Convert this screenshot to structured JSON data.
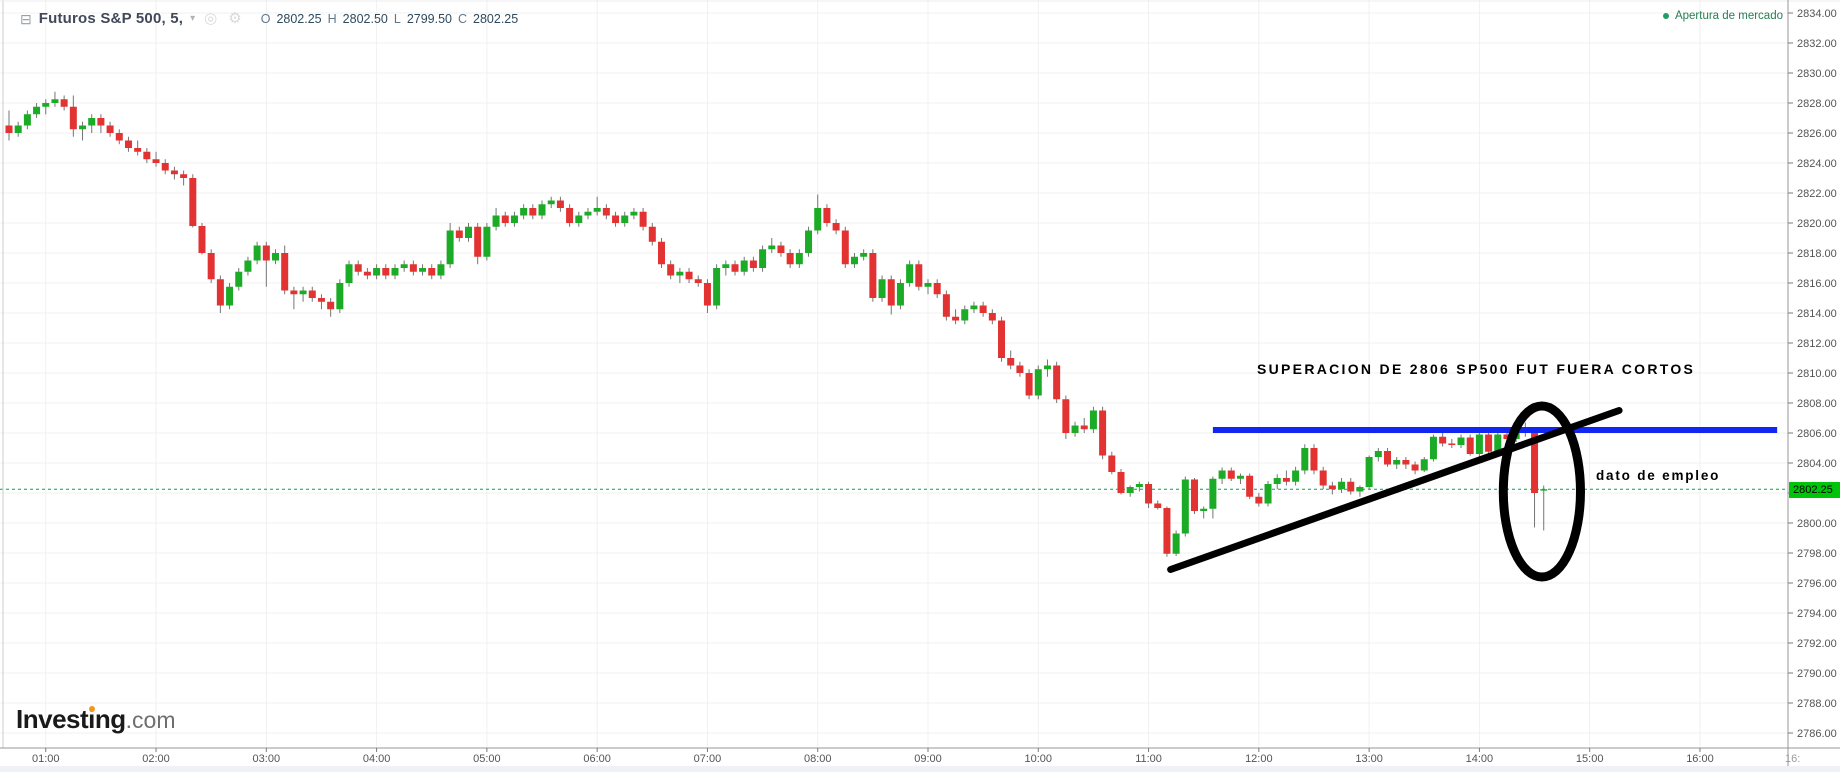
{
  "header": {
    "symbol_title": "Futuros S&P 500, 5,",
    "icons": {
      "collapse": "⊟",
      "dropdown": "▾",
      "visibility": "◎",
      "settings": "⚙"
    },
    "ohlc": {
      "o_label": "O",
      "o": "2802.25",
      "h_label": "H",
      "h": "2802.50",
      "l_label": "L",
      "l": "2799.50",
      "c_label": "C",
      "c": "2802.25"
    }
  },
  "market_open": {
    "label": "Apertura de mercado",
    "color": "#267d52"
  },
  "logo": {
    "text_before": "Invest",
    "accent_letter": "i",
    "text_after": "ng",
    "suffix": ".com"
  },
  "chart_data": {
    "type": "candlestick",
    "title": "Futuros S&P 500, 5",
    "interval_minutes": 5,
    "start_time": "00:40",
    "current_price": 2802.25,
    "current_price_label": "2802.25",
    "legend_ohlc": {
      "open": 2802.25,
      "high": 2802.5,
      "low": 2799.5,
      "close": 2802.25
    },
    "ylim": [
      2786,
      2834
    ],
    "y_ticks": [
      "2834.00",
      "2832.00",
      "2830.00",
      "2828.00",
      "2826.00",
      "2824.00",
      "2822.00",
      "2820.00",
      "2818.00",
      "2816.00",
      "2814.00",
      "2812.00",
      "2810.00",
      "2808.00",
      "2806.00",
      "2804.00",
      "2802.00",
      "2800.00",
      "2798.00",
      "2796.00",
      "2794.00",
      "2792.00",
      "2790.00",
      "2788.00",
      "2786.00"
    ],
    "x_ticks": [
      "01:00",
      "02:00",
      "03:00",
      "04:00",
      "05:00",
      "06:00",
      "07:00",
      "08:00",
      "09:00",
      "10:00",
      "11:00",
      "12:00",
      "13:00",
      "14:00",
      "15:00",
      "16:00"
    ],
    "x_tick_partial": "16:",
    "grid": true,
    "colors": {
      "up": "#1cab26",
      "down": "#e23232",
      "wick": "#757575",
      "grid": "#f0f0f0",
      "axis_line": "#979797",
      "axis_text": "#545454",
      "current_price_line": "#00a551",
      "current_price_bg": "#00c40a",
      "annotation_blue": "#1226f2",
      "annotation_black": "#000000"
    },
    "candles": [
      [
        2826.5,
        2827.5,
        2825.5,
        2826.0
      ],
      [
        2826.0,
        2826.75,
        2825.75,
        2826.5
      ],
      [
        2826.5,
        2827.5,
        2826.25,
        2827.25
      ],
      [
        2827.25,
        2828.0,
        2827.0,
        2827.75
      ],
      [
        2827.75,
        2828.25,
        2827.25,
        2828.0
      ],
      [
        2828.0,
        2828.75,
        2827.75,
        2828.25
      ],
      [
        2828.25,
        2828.5,
        2827.5,
        2827.75
      ],
      [
        2827.75,
        2828.5,
        2825.75,
        2826.25
      ],
      [
        2826.25,
        2826.75,
        2825.5,
        2826.5
      ],
      [
        2826.5,
        2827.25,
        2826.0,
        2827.0
      ],
      [
        2827.0,
        2827.25,
        2826.0,
        2826.5
      ],
      [
        2826.5,
        2826.75,
        2825.75,
        2826.0
      ],
      [
        2826.0,
        2826.25,
        2825.25,
        2825.5
      ],
      [
        2825.5,
        2825.75,
        2824.75,
        2825.0
      ],
      [
        2825.0,
        2825.5,
        2824.5,
        2824.75
      ],
      [
        2824.75,
        2825.0,
        2824.0,
        2824.25
      ],
      [
        2824.25,
        2824.75,
        2823.75,
        2824.0
      ],
      [
        2824.0,
        2824.25,
        2823.25,
        2823.5
      ],
      [
        2823.5,
        2823.75,
        2822.9,
        2823.25
      ],
      [
        2823.25,
        2823.5,
        2822.5,
        2823.0
      ],
      [
        2823.0,
        2823.25,
        2819.7,
        2819.8
      ],
      [
        2819.8,
        2820.0,
        2817.9,
        2818.0
      ],
      [
        2818.0,
        2818.25,
        2816.0,
        2816.25
      ],
      [
        2816.25,
        2816.5,
        2814.0,
        2814.5
      ],
      [
        2814.5,
        2816.0,
        2814.25,
        2815.75
      ],
      [
        2815.75,
        2817.0,
        2815.5,
        2816.75
      ],
      [
        2816.75,
        2817.75,
        2816.5,
        2817.5
      ],
      [
        2817.5,
        2818.75,
        2817.25,
        2818.5
      ],
      [
        2818.5,
        2818.75,
        2815.75,
        2817.5
      ],
      [
        2817.5,
        2818.25,
        2817.25,
        2818.0
      ],
      [
        2818.0,
        2818.5,
        2815.25,
        2815.5
      ],
      [
        2815.5,
        2815.75,
        2814.25,
        2815.25
      ],
      [
        2815.25,
        2815.75,
        2814.75,
        2815.5
      ],
      [
        2815.5,
        2815.75,
        2814.75,
        2815.0
      ],
      [
        2815.0,
        2815.25,
        2814.25,
        2814.75
      ],
      [
        2814.75,
        2815.0,
        2813.75,
        2814.25
      ],
      [
        2814.25,
        2816.25,
        2814.0,
        2816.0
      ],
      [
        2816.0,
        2817.5,
        2815.75,
        2817.25
      ],
      [
        2817.25,
        2817.5,
        2816.5,
        2816.75
      ],
      [
        2816.75,
        2817.0,
        2816.25,
        2816.5
      ],
      [
        2816.5,
        2817.25,
        2816.25,
        2817.0
      ],
      [
        2817.0,
        2817.25,
        2816.25,
        2816.5
      ],
      [
        2816.5,
        2817.25,
        2816.25,
        2817.0
      ],
      [
        2817.0,
        2817.5,
        2816.75,
        2817.25
      ],
      [
        2817.25,
        2817.5,
        2816.5,
        2816.75
      ],
      [
        2816.75,
        2817.25,
        2816.5,
        2817.0
      ],
      [
        2817.0,
        2817.25,
        2816.25,
        2816.5
      ],
      [
        2816.5,
        2817.5,
        2816.25,
        2817.25
      ],
      [
        2817.25,
        2820.0,
        2817.0,
        2819.5
      ],
      [
        2819.5,
        2819.75,
        2818.75,
        2819.0
      ],
      [
        2819.0,
        2820.0,
        2818.75,
        2819.75
      ],
      [
        2819.75,
        2820.0,
        2817.25,
        2817.75
      ],
      [
        2817.75,
        2820.0,
        2817.5,
        2819.75
      ],
      [
        2819.75,
        2821.0,
        2819.5,
        2820.5
      ],
      [
        2820.5,
        2820.75,
        2819.75,
        2820.0
      ],
      [
        2820.0,
        2820.75,
        2819.75,
        2820.5
      ],
      [
        2820.5,
        2821.25,
        2820.25,
        2821.0
      ],
      [
        2821.0,
        2821.25,
        2820.25,
        2820.5
      ],
      [
        2820.5,
        2821.5,
        2820.25,
        2821.25
      ],
      [
        2821.25,
        2821.75,
        2821.0,
        2821.5
      ],
      [
        2821.5,
        2821.75,
        2820.75,
        2821.0
      ],
      [
        2821.0,
        2821.25,
        2819.75,
        2820.0
      ],
      [
        2820.0,
        2820.75,
        2819.75,
        2820.5
      ],
      [
        2820.5,
        2821.0,
        2820.25,
        2820.75
      ],
      [
        2820.75,
        2821.75,
        2820.5,
        2821.0
      ],
      [
        2821.0,
        2821.25,
        2820.25,
        2820.5
      ],
      [
        2820.5,
        2820.75,
        2819.75,
        2820.0
      ],
      [
        2820.0,
        2820.75,
        2819.75,
        2820.5
      ],
      [
        2820.5,
        2821.0,
        2820.25,
        2820.75
      ],
      [
        2820.75,
        2821.0,
        2819.5,
        2819.75
      ],
      [
        2819.75,
        2820.0,
        2818.5,
        2818.75
      ],
      [
        2818.75,
        2819.0,
        2817.0,
        2817.25
      ],
      [
        2817.25,
        2817.5,
        2816.25,
        2816.5
      ],
      [
        2816.5,
        2817.0,
        2816.0,
        2816.75
      ],
      [
        2816.75,
        2817.0,
        2816.0,
        2816.25
      ],
      [
        2816.25,
        2816.5,
        2815.75,
        2816.0
      ],
      [
        2816.0,
        2816.25,
        2814.0,
        2814.5
      ],
      [
        2814.5,
        2817.25,
        2814.25,
        2817.0
      ],
      [
        2817.0,
        2817.5,
        2816.5,
        2817.25
      ],
      [
        2817.25,
        2817.5,
        2816.5,
        2816.75
      ],
      [
        2816.75,
        2817.75,
        2816.5,
        2817.5
      ],
      [
        2817.5,
        2817.75,
        2816.75,
        2817.0
      ],
      [
        2817.0,
        2818.5,
        2816.75,
        2818.25
      ],
      [
        2818.25,
        2819.0,
        2818.0,
        2818.5
      ],
      [
        2818.5,
        2818.75,
        2817.75,
        2818.0
      ],
      [
        2818.0,
        2818.25,
        2817.0,
        2817.25
      ],
      [
        2817.25,
        2818.25,
        2817.0,
        2818.0
      ],
      [
        2818.0,
        2819.75,
        2817.75,
        2819.5
      ],
      [
        2819.5,
        2821.9,
        2819.25,
        2821.0
      ],
      [
        2821.0,
        2821.25,
        2819.75,
        2820.0
      ],
      [
        2820.0,
        2820.25,
        2819.25,
        2819.5
      ],
      [
        2819.5,
        2819.75,
        2817.0,
        2817.25
      ],
      [
        2817.25,
        2818.0,
        2817.0,
        2817.75
      ],
      [
        2817.75,
        2818.25,
        2817.5,
        2818.0
      ],
      [
        2818.0,
        2818.25,
        2814.75,
        2815.0
      ],
      [
        2815.0,
        2816.5,
        2814.75,
        2816.25
      ],
      [
        2816.25,
        2816.5,
        2813.9,
        2814.5
      ],
      [
        2814.5,
        2816.25,
        2814.25,
        2816.0
      ],
      [
        2816.0,
        2817.5,
        2815.75,
        2817.25
      ],
      [
        2817.25,
        2817.5,
        2815.5,
        2815.75
      ],
      [
        2815.75,
        2816.25,
        2815.25,
        2816.0
      ],
      [
        2816.0,
        2816.25,
        2815.0,
        2815.25
      ],
      [
        2815.25,
        2815.5,
        2813.5,
        2813.75
      ],
      [
        2813.75,
        2814.25,
        2813.25,
        2813.5
      ],
      [
        2813.5,
        2814.5,
        2813.25,
        2814.25
      ],
      [
        2814.25,
        2814.75,
        2814.0,
        2814.5
      ],
      [
        2814.5,
        2814.75,
        2813.75,
        2814.0
      ],
      [
        2814.0,
        2814.25,
        2813.25,
        2813.5
      ],
      [
        2813.5,
        2813.75,
        2810.75,
        2811.0
      ],
      [
        2811.0,
        2811.5,
        2810.25,
        2810.5
      ],
      [
        2810.5,
        2810.75,
        2809.75,
        2810.0
      ],
      [
        2810.0,
        2810.25,
        2808.25,
        2808.5
      ],
      [
        2808.5,
        2810.5,
        2808.25,
        2810.25
      ],
      [
        2810.25,
        2810.9,
        2809.75,
        2810.5
      ],
      [
        2810.5,
        2810.75,
        2808.0,
        2808.25
      ],
      [
        2808.25,
        2808.5,
        2805.6,
        2806.0
      ],
      [
        2806.0,
        2806.75,
        2805.75,
        2806.5
      ],
      [
        2806.5,
        2807.0,
        2806.0,
        2806.25
      ],
      [
        2806.25,
        2807.75,
        2806.0,
        2807.5
      ],
      [
        2807.5,
        2807.75,
        2804.25,
        2804.5
      ],
      [
        2804.5,
        2804.75,
        2803.25,
        2803.4
      ],
      [
        2803.4,
        2803.6,
        2801.9,
        2802.0
      ],
      [
        2802.0,
        2802.5,
        2801.75,
        2802.4
      ],
      [
        2802.4,
        2802.75,
        2802.1,
        2802.6
      ],
      [
        2802.6,
        2802.75,
        2801.0,
        2801.3
      ],
      [
        2801.3,
        2801.5,
        2800.9,
        2801.0
      ],
      [
        2801.0,
        2801.1,
        2797.75,
        2797.95
      ],
      [
        2797.95,
        2799.5,
        2797.8,
        2799.3
      ],
      [
        2799.3,
        2803.1,
        2799.1,
        2802.9
      ],
      [
        2802.9,
        2803.0,
        2800.6,
        2800.8
      ],
      [
        2800.8,
        2801.1,
        2800.3,
        2800.95
      ],
      [
        2800.95,
        2803.1,
        2800.3,
        2802.95
      ],
      [
        2802.95,
        2803.7,
        2802.6,
        2803.5
      ],
      [
        2803.5,
        2803.7,
        2802.8,
        2802.95
      ],
      [
        2802.95,
        2803.3,
        2802.6,
        2803.15
      ],
      [
        2803.15,
        2803.3,
        2801.6,
        2801.75
      ],
      [
        2801.75,
        2802.0,
        2801.1,
        2801.3
      ],
      [
        2801.3,
        2802.8,
        2801.1,
        2802.6
      ],
      [
        2802.6,
        2803.25,
        2802.25,
        2803.0
      ],
      [
        2803.0,
        2803.5,
        2802.5,
        2802.75
      ],
      [
        2802.75,
        2803.75,
        2802.5,
        2803.5
      ],
      [
        2803.5,
        2805.25,
        2803.25,
        2805.0
      ],
      [
        2805.0,
        2805.25,
        2803.25,
        2803.5
      ],
      [
        2803.5,
        2803.75,
        2802.25,
        2802.5
      ],
      [
        2802.5,
        2802.75,
        2801.9,
        2802.25
      ],
      [
        2802.25,
        2803.0,
        2802.0,
        2802.75
      ],
      [
        2802.75,
        2803.0,
        2801.9,
        2802.1
      ],
      [
        2802.1,
        2802.5,
        2801.75,
        2802.4
      ],
      [
        2802.4,
        2804.5,
        2802.25,
        2804.4
      ],
      [
        2804.4,
        2805.0,
        2804.1,
        2804.8
      ],
      [
        2804.8,
        2805.0,
        2803.75,
        2803.9
      ],
      [
        2803.9,
        2804.4,
        2803.6,
        2804.2
      ],
      [
        2804.2,
        2804.4,
        2803.6,
        2803.9
      ],
      [
        2803.9,
        2804.1,
        2803.25,
        2803.5
      ],
      [
        2803.5,
        2804.4,
        2803.4,
        2804.25
      ],
      [
        2804.25,
        2805.9,
        2804.1,
        2805.75
      ],
      [
        2805.75,
        2806.0,
        2805.1,
        2805.3
      ],
      [
        2805.3,
        2805.6,
        2805.0,
        2805.2
      ],
      [
        2805.2,
        2805.9,
        2805.0,
        2805.7
      ],
      [
        2805.7,
        2805.9,
        2804.5,
        2804.6
      ],
      [
        2804.6,
        2806.0,
        2804.4,
        2805.9
      ],
      [
        2805.9,
        2806.1,
        2804.6,
        2804.75
      ],
      [
        2804.75,
        2806.0,
        2804.6,
        2805.9
      ],
      [
        2805.9,
        2806.4,
        2805.4,
        2805.6
      ],
      [
        2805.6,
        2806.6,
        2805.4,
        2806.25
      ],
      [
        2806.25,
        2806.7,
        2805.75,
        2806.0
      ],
      [
        2806.0,
        2806.3,
        2799.7,
        2802.0
      ],
      [
        2802.25,
        2802.5,
        2799.5,
        2802.25
      ]
    ],
    "annotations": {
      "resistance_line": {
        "price": 2806.2,
        "time_start": "11:35",
        "time_end": "16:42",
        "color": "#1226f2",
        "width": 6
      },
      "trendline": {
        "start": {
          "time": "11:12",
          "price": 2796.9
        },
        "end": {
          "time": "15:16",
          "price": 2807.5
        },
        "color": "#000000",
        "width": 7
      },
      "ellipse": {
        "center_time": "14:34",
        "center_price": 2802.1,
        "rx_minutes": 21,
        "ry_points": 5.7,
        "color": "#000000",
        "width": 9
      },
      "texts": [
        {
          "label": "SUPERACION DE 2806 SP500 FUT FUERA CORTOS"
        },
        {
          "label": "dato de empleo"
        }
      ]
    }
  }
}
